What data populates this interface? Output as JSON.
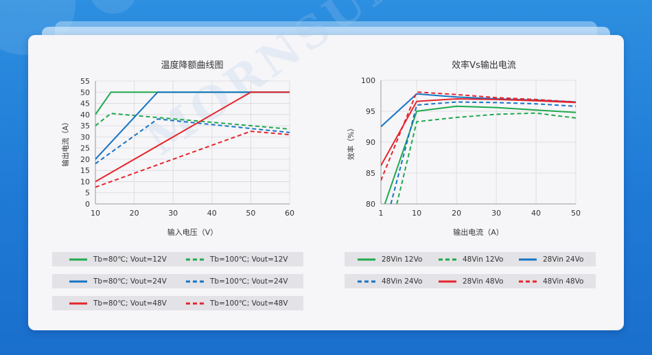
{
  "colors": {
    "green": "#1daa4b",
    "blue": "#1574c4",
    "red": "#e5252a"
  },
  "chart_data": [
    {
      "type": "line",
      "title": "温度降额曲线图",
      "xlabel": "输入电压（V）",
      "ylabel": "输出电流（A）",
      "xlim": [
        10,
        60
      ],
      "ylim": [
        0,
        55
      ],
      "xticks": [
        "10",
        "20",
        "30",
        "40",
        "50",
        "60"
      ],
      "yticks": [
        "0",
        "5",
        "10",
        "15",
        "20",
        "25",
        "30",
        "35",
        "40",
        "45",
        "50",
        "55"
      ],
      "grid": true,
      "series": [
        {
          "name": "Tb=80℃; Vout=12V",
          "color": "green",
          "dash": false,
          "x": [
            10,
            14,
            60
          ],
          "y": [
            40,
            50,
            50
          ]
        },
        {
          "name": "Tb=100℃; Vout=12V",
          "color": "green",
          "dash": true,
          "x": [
            10,
            14,
            60
          ],
          "y": [
            35,
            40.5,
            33.5
          ]
        },
        {
          "name": "Tb=80℃; Vout=24V",
          "color": "blue",
          "dash": false,
          "x": [
            10,
            26,
            60
          ],
          "y": [
            20,
            50,
            50
          ]
        },
        {
          "name": "Tb=100℃; Vout=24V",
          "color": "blue",
          "dash": true,
          "x": [
            10,
            26,
            60
          ],
          "y": [
            18,
            38,
            32
          ]
        },
        {
          "name": "Tb=80℃; Vout=48V",
          "color": "red",
          "dash": false,
          "x": [
            10,
            50,
            60
          ],
          "y": [
            10,
            50,
            50
          ]
        },
        {
          "name": "Tb=100℃; Vout=48V",
          "color": "red",
          "dash": true,
          "x": [
            10,
            50,
            60
          ],
          "y": [
            7.5,
            32.5,
            31
          ]
        }
      ]
    },
    {
      "type": "line",
      "title": "效率Vs输出电流",
      "xlabel": "输出电流（A）",
      "ylabel": "效率（%）",
      "xlim": [
        1,
        50
      ],
      "ylim": [
        80,
        100
      ],
      "xticks": [
        "1",
        "10",
        "20",
        "30",
        "40",
        "50"
      ],
      "yticks": [
        "80",
        "85",
        "90",
        "95",
        "100"
      ],
      "grid": true,
      "series": [
        {
          "name": "28Vin 12Vo",
          "color": "green",
          "dash": false,
          "x": [
            2,
            10,
            20,
            30,
            40,
            50
          ],
          "y": [
            80,
            95,
            95.8,
            95.6,
            95.2,
            94.8
          ]
        },
        {
          "name": "48Vin 12Vo",
          "color": "green",
          "dash": true,
          "x": [
            5,
            10,
            20,
            30,
            40,
            50
          ],
          "y": [
            80,
            93.3,
            94,
            94.5,
            94.7,
            93.9
          ]
        },
        {
          "name": "28Vin 24Vo",
          "color": "blue",
          "dash": false,
          "x": [
            1,
            10,
            20,
            30,
            40,
            50
          ],
          "y": [
            92.5,
            97.8,
            97.3,
            97,
            96.8,
            96.5
          ]
        },
        {
          "name": "48Vin 24Vo",
          "color": "blue",
          "dash": true,
          "x": [
            3.5,
            10,
            20,
            30,
            40,
            50
          ],
          "y": [
            80,
            96,
            96.5,
            96.4,
            96.2,
            95.8
          ]
        },
        {
          "name": "28Vin 48Vo",
          "color": "red",
          "dash": false,
          "x": [
            1,
            10,
            20,
            30,
            40,
            50
          ],
          "y": [
            86.2,
            96.6,
            97,
            96.9,
            96.7,
            96.4
          ]
        },
        {
          "name": "48Vin 48Vo",
          "color": "red",
          "dash": true,
          "x": [
            1,
            10,
            20,
            30,
            40,
            50
          ],
          "y": [
            83.8,
            98.1,
            97.7,
            97.2,
            96.9,
            96.5
          ]
        }
      ]
    }
  ],
  "watermark": "MORNSUN®"
}
